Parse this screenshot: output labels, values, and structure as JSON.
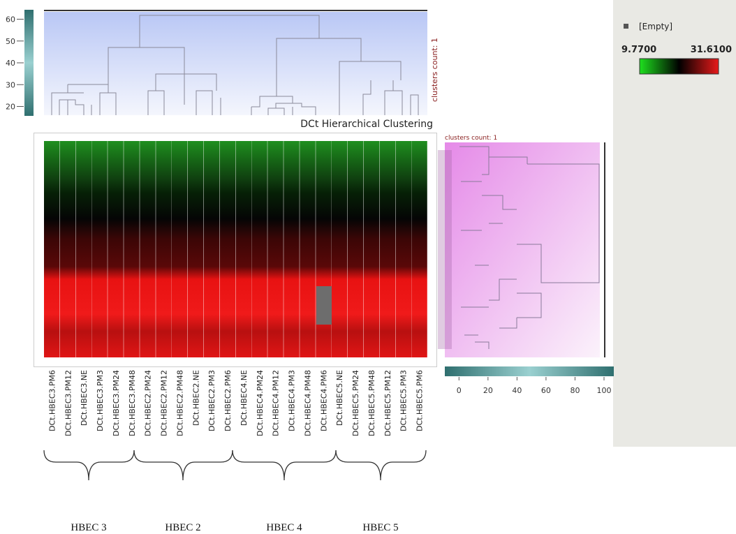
{
  "top_dendrogram": {
    "yticks": [
      20,
      30,
      40,
      50,
      60
    ],
    "ylim": [
      16,
      64
    ],
    "label": "clusters count: 1"
  },
  "title": "DCt Hierarchical Clustering",
  "columns": [
    "DCt.HBEC3.PM6",
    "DCt.HBEC3.PM12",
    "DCt.HBEC3.NE",
    "DCt.HBEC3.PM3",
    "DCt.HBEC3.PM24",
    "DCt.HBEC3.PM48",
    "DCt.HBEC2.PM24",
    "DCt.HBEC2.PM12",
    "DCt.HBEC2.PM48",
    "DCt.HBEC2.NE",
    "DCt.HBEC2.PM3",
    "DCt.HBEC2.PM6",
    "DCt.HBEC4.NE",
    "DCt.HBEC4.PM24",
    "DCt.HBEC4.PM12",
    "DCt.HBEC4.PM3",
    "DCt.HBEC4.PM48",
    "DCt.HBEC4.PM6",
    "DCt.HBEC5.NE",
    "DCt.HBEC5.PM24",
    "DCt.HBEC5.PM48",
    "DCt.HBEC5.PM12",
    "DCt.HBEC5.PM3",
    "DCt.HBEC5.PM6"
  ],
  "right_dendrogram": {
    "label": "clusters count: 1",
    "xticks": [
      0,
      20,
      40,
      60,
      80,
      100
    ],
    "xlim": [
      -4,
      100
    ]
  },
  "legend": {
    "empty": "[Empty]",
    "min": "9.7700",
    "max": "31.6100"
  },
  "groups": [
    "HBEC 3",
    "HBEC 2",
    "HBEC 4",
    "HBEC 5"
  ]
}
